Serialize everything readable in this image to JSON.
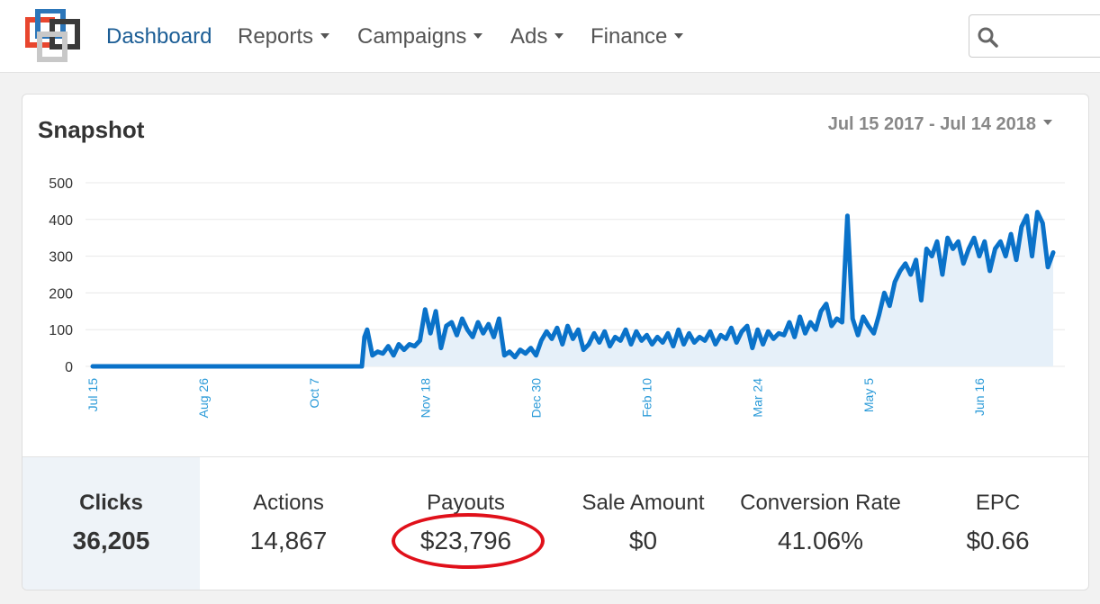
{
  "nav": {
    "items": [
      {
        "label": "Dashboard",
        "active": true,
        "dropdown": false
      },
      {
        "label": "Reports",
        "active": false,
        "dropdown": true
      },
      {
        "label": "Campaigns",
        "active": false,
        "dropdown": true
      },
      {
        "label": "Ads",
        "active": false,
        "dropdown": true
      },
      {
        "label": "Finance",
        "active": false,
        "dropdown": true
      }
    ],
    "search": {
      "placeholder": "",
      "icon": "search-icon"
    }
  },
  "snapshot": {
    "title": "Snapshot",
    "date_range": "Jul 15 2017 - Jul 14 2018"
  },
  "stats": [
    {
      "label": "Clicks",
      "value": "36,205",
      "selected": true
    },
    {
      "label": "Actions",
      "value": "14,867",
      "selected": false
    },
    {
      "label": "Payouts",
      "value": "$23,796",
      "selected": false,
      "highlighted": true
    },
    {
      "label": "Sale Amount",
      "value": "$0",
      "selected": false
    },
    {
      "label": "Conversion Rate",
      "value": "41.06%",
      "selected": false
    },
    {
      "label": "EPC",
      "value": "$0.66",
      "selected": false
    }
  ],
  "colors": {
    "accent": "#1b5d95",
    "line": "#0a72c9",
    "fill": "#e6f0f9",
    "highlight": "#e0101a",
    "tick_label": "#2a9ad8"
  },
  "chart_data": {
    "type": "area",
    "y_ticks": [
      0,
      100,
      200,
      300,
      400,
      500
    ],
    "ylim": [
      0,
      500
    ],
    "x_tick_labels": [
      {
        "label": "Jul 15",
        "day": 0
      },
      {
        "label": "Aug 26",
        "day": 42
      },
      {
        "label": "Oct 7",
        "day": 84
      },
      {
        "label": "Nov 18",
        "day": 126
      },
      {
        "label": "Dec 30",
        "day": 168
      },
      {
        "label": "Feb 10",
        "day": 210
      },
      {
        "label": "Mar 24",
        "day": 252
      },
      {
        "label": "May 5",
        "day": 294
      },
      {
        "label": "Jun 16",
        "day": 336
      }
    ],
    "series": [
      {
        "x": [
          0,
          20,
          40,
          60,
          80,
          102,
          103,
          104,
          106,
          108,
          110,
          112,
          114,
          116,
          118,
          120,
          122,
          124,
          126,
          128,
          130,
          132,
          134,
          136,
          138,
          140,
          142,
          144,
          146,
          148,
          150,
          152,
          154,
          156,
          158,
          160,
          162,
          164,
          166,
          168,
          170,
          172,
          174,
          176,
          178,
          180,
          182,
          184,
          186,
          188,
          190,
          192,
          194,
          196,
          198,
          200,
          202,
          204,
          206,
          208,
          210,
          212,
          214,
          216,
          218,
          220,
          222,
          224,
          226,
          228,
          230,
          232,
          234,
          236,
          238,
          240,
          242,
          244,
          246,
          248,
          250,
          252,
          254,
          256,
          258,
          260,
          262,
          264,
          266,
          268,
          270,
          272,
          274,
          276,
          278,
          280,
          282,
          284,
          286,
          288,
          290,
          292,
          294,
          296,
          298,
          300,
          302,
          304,
          306,
          308,
          310,
          312,
          314,
          316,
          318,
          320,
          322,
          324,
          326,
          328,
          330,
          332,
          334,
          336,
          338,
          340,
          342,
          344,
          346,
          348,
          350,
          352,
          354,
          356,
          358,
          360,
          362,
          364
        ],
        "values": [
          0,
          0,
          0,
          0,
          0,
          0,
          80,
          100,
          30,
          40,
          35,
          55,
          30,
          60,
          45,
          60,
          55,
          70,
          155,
          90,
          150,
          50,
          110,
          120,
          85,
          130,
          100,
          80,
          120,
          90,
          115,
          80,
          130,
          30,
          40,
          25,
          45,
          35,
          50,
          30,
          70,
          95,
          75,
          105,
          60,
          110,
          75,
          100,
          45,
          60,
          90,
          65,
          95,
          55,
          80,
          70,
          100,
          60,
          95,
          70,
          85,
          60,
          80,
          65,
          90,
          55,
          100,
          60,
          90,
          65,
          80,
          70,
          95,
          60,
          85,
          75,
          105,
          65,
          95,
          110,
          50,
          100,
          60,
          95,
          75,
          90,
          85,
          120,
          80,
          135,
          90,
          120,
          100,
          150,
          170,
          110,
          130,
          120,
          410,
          130,
          85,
          135,
          110,
          90,
          140,
          200,
          165,
          230,
          260,
          280,
          250,
          290,
          180,
          320,
          300,
          340,
          250,
          350,
          320,
          340,
          280,
          320,
          350,
          300,
          340,
          260,
          320,
          340,
          300,
          360,
          290,
          380,
          410,
          300,
          420,
          390,
          270,
          310
        ]
      }
    ],
    "grid": true,
    "legend": "none"
  }
}
